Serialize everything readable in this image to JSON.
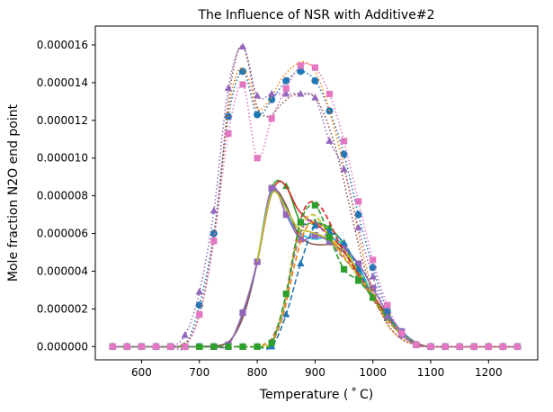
{
  "chart_data": {
    "type": "line",
    "title": "The Influence of NSR with Additive#2",
    "xlabel": "Temperature ($^\\circ$C)",
    "xlabel_display": "Temperature ( ˚ C)",
    "ylabel": "Mole fraction N2O end point",
    "xlim": [
      520,
      1285
    ],
    "ylim": [
      -7e-07,
      1.7e-05
    ],
    "x_ticks": [
      600,
      700,
      800,
      900,
      1000,
      1100,
      1200
    ],
    "x_tick_labels": [
      "600",
      "700",
      "800",
      "900",
      "1000",
      "1100",
      "1200"
    ],
    "y_ticks": [
      0,
      2e-06,
      4e-06,
      6e-06,
      8e-06,
      1e-05,
      1.2e-05,
      1.4e-05,
      1.6e-05
    ],
    "y_tick_labels": [
      "0.000000",
      "0.000002",
      "0.000004",
      "0.000006",
      "0.000008",
      "0.000010",
      "0.000012",
      "0.000014",
      "0.000016"
    ],
    "grid": false,
    "series": [
      {
        "color": "#2ca02c",
        "linestyle": "solid",
        "marker": "triangle",
        "x": [
          550,
          575,
          600,
          625,
          650,
          675,
          700,
          725,
          750,
          775,
          800,
          825,
          850,
          875,
          900,
          925,
          950,
          975,
          1000,
          1025,
          1050,
          1075,
          1100,
          1125,
          1150,
          1175,
          1200,
          1225,
          1250
        ],
        "y": [
          0,
          0,
          0,
          0,
          0,
          0,
          0,
          0,
          1e-07,
          1.8e-06,
          4.5e-06,
          8.4e-06,
          8.5e-06,
          6.6e-06,
          6.6e-06,
          6.3e-06,
          5.4e-06,
          3.8e-06,
          2.6e-06,
          1.7e-06,
          8e-07,
          1e-07,
          0,
          0,
          0,
          0,
          0,
          0,
          0
        ]
      },
      {
        "color": "#d62728",
        "linestyle": "solid",
        "marker": "none",
        "x": [
          550,
          600,
          650,
          700,
          740,
          760,
          780,
          800,
          820,
          835,
          850,
          870,
          890,
          910,
          930,
          950,
          970,
          990,
          1010,
          1030,
          1050,
          1075,
          1100,
          1150,
          1200,
          1250
        ],
        "y": [
          0,
          0,
          0,
          0,
          1e-07,
          6e-07,
          2e-06,
          4.5e-06,
          7.6e-06,
          8.7e-06,
          8.5e-06,
          7.3e-06,
          6.7e-06,
          6.3e-06,
          5.8e-06,
          5.1e-06,
          4.2e-06,
          3.2e-06,
          2.3e-06,
          1.5e-06,
          8e-07,
          2e-07,
          0,
          0,
          0,
          0
        ]
      },
      {
        "color": "#17becf",
        "linestyle": "solid",
        "marker": "none",
        "x": [
          550,
          600,
          650,
          700,
          740,
          760,
          780,
          800,
          820,
          840,
          860,
          880,
          900,
          920,
          940,
          960,
          980,
          1000,
          1025,
          1050,
          1075,
          1100,
          1150,
          1200,
          1250
        ],
        "y": [
          0,
          0,
          0,
          0,
          1e-07,
          6e-07,
          2e-06,
          4.5e-06,
          7.9e-06,
          8e-06,
          6.5e-06,
          5.9e-06,
          5.7e-06,
          5.8e-06,
          5.6e-06,
          5e-06,
          4e-06,
          2.7e-06,
          1.6e-06,
          8e-07,
          2e-07,
          0,
          0,
          0,
          0
        ]
      },
      {
        "color": "#8c564b",
        "linestyle": "solid",
        "marker": "none",
        "x": [
          550,
          600,
          650,
          700,
          740,
          760,
          780,
          800,
          815,
          830,
          850,
          870,
          890,
          910,
          930,
          950,
          970,
          990,
          1010,
          1030,
          1050,
          1075,
          1100,
          1150,
          1200,
          1250
        ],
        "y": [
          0,
          0,
          0,
          0,
          1e-07,
          6e-07,
          2e-06,
          4.5e-06,
          7e-06,
          8.3e-06,
          7.5e-06,
          6e-06,
          5.5e-06,
          5.4e-06,
          5.4e-06,
          5e-06,
          4.2e-06,
          3.2e-06,
          2.2e-06,
          1.4e-06,
          7e-07,
          2e-07,
          0,
          0,
          0,
          0
        ]
      },
      {
        "color": "#9467bd",
        "linestyle": "solid",
        "marker": "square",
        "x": [
          550,
          575,
          600,
          625,
          650,
          675,
          700,
          725,
          750,
          775,
          800,
          825,
          850,
          875,
          900,
          925,
          950,
          975,
          1000,
          1025,
          1050,
          1075,
          1100,
          1125,
          1150,
          1175,
          1200,
          1225,
          1250
        ],
        "y": [
          0,
          0,
          0,
          0,
          0,
          0,
          0,
          0,
          1e-07,
          1.8e-06,
          4.5e-06,
          8.4e-06,
          7e-06,
          5.7e-06,
          5.9e-06,
          5.6e-06,
          5.2e-06,
          4.4e-06,
          3.1e-06,
          1.8e-06,
          8e-07,
          1e-07,
          0,
          0,
          0,
          0,
          0,
          0,
          0
        ]
      },
      {
        "color": "#bcbd22",
        "linestyle": "solid",
        "marker": "none",
        "x": [
          800,
          825,
          850,
          870,
          890,
          910,
          930,
          950,
          975,
          1000
        ],
        "y": [
          4.5e-06,
          8.1e-06,
          7.3e-06,
          6.3e-06,
          6.1e-06,
          5.9e-06,
          5.6e-06,
          5.1e-06,
          4e-06,
          2.7e-06
        ]
      },
      {
        "color": "#1f77b4",
        "linestyle": "dashed",
        "marker": "triangle",
        "x": [
          550,
          575,
          600,
          625,
          650,
          675,
          700,
          725,
          750,
          775,
          800,
          825,
          850,
          875,
          900,
          925,
          950,
          975,
          1000,
          1025,
          1050,
          1075,
          1100,
          1125,
          1150,
          1175,
          1200,
          1225,
          1250
        ],
        "y": [
          0,
          0,
          0,
          0,
          0,
          0,
          0,
          0,
          0,
          0,
          0,
          0,
          1.7e-06,
          4.4e-06,
          6.4e-06,
          6.1e-06,
          5.5e-06,
          4.1e-06,
          2.6e-06,
          1.5e-06,
          7e-07,
          1e-07,
          0,
          0,
          0,
          0,
          0,
          0,
          0
        ]
      },
      {
        "color": "#ff7f0e",
        "linestyle": "dashed",
        "marker": "none",
        "x": [
          550,
          800,
          810,
          825,
          840,
          850,
          865,
          880,
          895,
          910,
          925,
          940,
          955,
          975,
          1000,
          1025,
          1050,
          1075,
          1100,
          1250
        ],
        "y": [
          0,
          0,
          1e-07,
          2e-07,
          1.2e-06,
          2.3e-06,
          4.4e-06,
          6e-06,
          6.6e-06,
          6.4e-06,
          5.8e-06,
          5.2e-06,
          4.6e-06,
          3.8e-06,
          2.6e-06,
          1.5e-06,
          7e-07,
          1e-07,
          0,
          0
        ]
      },
      {
        "color": "#d62728",
        "linestyle": "dashed",
        "marker": "none",
        "x": [
          550,
          800,
          810,
          825,
          840,
          850,
          865,
          880,
          895,
          910,
          925,
          940,
          955,
          975,
          1000,
          1025,
          1050,
          1075,
          1100,
          1250
        ],
        "y": [
          0,
          0,
          1e-07,
          4e-07,
          1.5e-06,
          2.8e-06,
          5.3e-06,
          7.2e-06,
          7.7e-06,
          7.4e-06,
          6.6e-06,
          5.6e-06,
          4.8e-06,
          3.8e-06,
          2.5e-06,
          1.4e-06,
          6e-07,
          1e-07,
          0,
          0
        ]
      },
      {
        "color": "#9467bd",
        "linestyle": "dashed",
        "marker": "none",
        "x": [
          550,
          800,
          810,
          825,
          840,
          850,
          865,
          880,
          895,
          910,
          925,
          940,
          955,
          975,
          1000,
          1025,
          1050,
          1075,
          1100,
          1250
        ],
        "y": [
          0,
          0,
          1e-07,
          3e-07,
          1.3e-06,
          2.6e-06,
          4.9e-06,
          6.4e-06,
          6.7e-06,
          6.3e-06,
          5.6e-06,
          5e-06,
          4.5e-06,
          3.7e-06,
          2.5e-06,
          1.4e-06,
          6e-07,
          1e-07,
          0,
          0
        ]
      },
      {
        "color": "#bcbd22",
        "linestyle": "dashed",
        "marker": "none",
        "x": [
          550,
          800,
          810,
          825,
          840,
          850,
          865,
          880,
          895,
          910,
          925,
          940,
          955,
          975,
          1000,
          1025,
          1050,
          1075,
          1100,
          1250
        ],
        "y": [
          0,
          0,
          1e-07,
          3e-07,
          1.4e-06,
          2.7e-06,
          5.1e-06,
          6.6e-06,
          7e-06,
          6.6e-06,
          5.8e-06,
          5.1e-06,
          4.5e-06,
          3.7e-06,
          2.5e-06,
          1.4e-06,
          6e-07,
          1e-07,
          0,
          0
        ]
      },
      {
        "color": "#2ca02c",
        "linestyle": "dashed",
        "marker": "square",
        "x": [
          550,
          575,
          600,
          625,
          650,
          675,
          700,
          725,
          750,
          775,
          800,
          825,
          850,
          875,
          900,
          925,
          950,
          975,
          1000,
          1025,
          1050,
          1075,
          1100,
          1125,
          1150,
          1175,
          1200,
          1225,
          1250
        ],
        "y": [
          0,
          0,
          0,
          0,
          0,
          0,
          0,
          0,
          0,
          0,
          0,
          2e-07,
          2.8e-06,
          6.6e-06,
          7.5e-06,
          5.8e-06,
          4.1e-06,
          3.5e-06,
          2.6e-06,
          1.6e-06,
          7e-07,
          1e-07,
          0,
          0,
          0,
          0,
          0,
          0,
          0
        ]
      },
      {
        "color": "#1f77b4",
        "linestyle": "dotted",
        "marker": "circle",
        "x": [
          550,
          575,
          600,
          625,
          650,
          675,
          700,
          725,
          750,
          775,
          800,
          825,
          850,
          875,
          900,
          925,
          950,
          975,
          1000,
          1025,
          1050,
          1075,
          1100,
          1125,
          1150,
          1175,
          1200,
          1225,
          1250
        ],
        "y": [
          0,
          0,
          0,
          0,
          0,
          0,
          2.2e-06,
          6e-06,
          1.22e-05,
          1.46e-05,
          1.23e-05,
          1.31e-05,
          1.41e-05,
          1.46e-05,
          1.41e-05,
          1.25e-05,
          1.02e-05,
          7e-06,
          4.2e-06,
          1.9e-06,
          7e-07,
          1e-07,
          0,
          0,
          0,
          0,
          0,
          0,
          0
        ]
      },
      {
        "color": "#ff7f0e",
        "linestyle": "dotted",
        "marker": "none",
        "x": [
          550,
          650,
          670,
          690,
          710,
          730,
          750,
          765,
          775,
          785,
          800,
          820,
          840,
          860,
          880,
          900,
          920,
          940,
          960,
          980,
          1000,
          1025,
          1050,
          1075,
          1100,
          1250
        ],
        "y": [
          0,
          0,
          1e-07,
          8e-07,
          3e-06,
          7e-06,
          1.25e-05,
          1.45e-05,
          1.47e-05,
          1.42e-05,
          1.26e-05,
          1.3e-05,
          1.41e-05,
          1.48e-05,
          1.51e-05,
          1.46e-05,
          1.3e-05,
          1.08e-05,
          8.2e-06,
          5.3e-06,
          3e-06,
          1.2e-06,
          4e-07,
          1e-07,
          0,
          0
        ]
      },
      {
        "color": "#8c564b",
        "linestyle": "dotted",
        "marker": "none",
        "x": [
          550,
          650,
          670,
          690,
          710,
          730,
          750,
          765,
          775,
          785,
          800,
          820,
          840,
          860,
          880,
          900,
          920,
          940,
          960,
          980,
          1000,
          1025,
          1050,
          1075,
          1100,
          1250
        ],
        "y": [
          0,
          0,
          1e-07,
          8e-07,
          3e-06,
          7e-06,
          1.3e-05,
          1.55e-05,
          1.59e-05,
          1.5e-05,
          1.27e-05,
          1.22e-05,
          1.28e-05,
          1.33e-05,
          1.34e-05,
          1.32e-05,
          1.2e-05,
          1e-05,
          7.4e-06,
          4.8e-06,
          2.8e-06,
          1.2e-06,
          4e-07,
          1e-07,
          0,
          0
        ]
      },
      {
        "color": "#9467bd",
        "linestyle": "dotted",
        "marker": "triangle",
        "x": [
          550,
          575,
          600,
          625,
          650,
          675,
          700,
          725,
          750,
          775,
          800,
          825,
          850,
          875,
          900,
          925,
          950,
          975,
          1000,
          1025,
          1050,
          1075,
          1100,
          1125,
          1150,
          1175,
          1200,
          1225,
          1250
        ],
        "y": [
          0,
          0,
          0,
          0,
          0,
          6e-07,
          2.9e-06,
          7.2e-06,
          1.37e-05,
          1.59e-05,
          1.33e-05,
          1.34e-05,
          1.34e-05,
          1.34e-05,
          1.32e-05,
          1.09e-05,
          9.4e-06,
          6.3e-06,
          3.7e-06,
          1.6e-06,
          6e-07,
          1e-07,
          0,
          0,
          0,
          0,
          0,
          0,
          0
        ]
      },
      {
        "color": "#e377c2",
        "linestyle": "dotted",
        "marker": "square",
        "x": [
          550,
          575,
          600,
          625,
          650,
          675,
          700,
          725,
          750,
          775,
          800,
          825,
          850,
          875,
          900,
          925,
          950,
          975,
          1000,
          1025,
          1050,
          1075,
          1100,
          1125,
          1150,
          1175,
          1200,
          1225,
          1250
        ],
        "y": [
          0,
          0,
          0,
          0,
          0,
          0,
          1.7e-06,
          5.6e-06,
          1.13e-05,
          1.39e-05,
          1e-05,
          1.21e-05,
          1.37e-05,
          1.49e-05,
          1.48e-05,
          1.34e-05,
          1.09e-05,
          7.7e-06,
          4.6e-06,
          2.2e-06,
          7e-07,
          1e-07,
          0,
          0,
          0,
          0,
          0,
          0,
          0
        ]
      }
    ]
  }
}
